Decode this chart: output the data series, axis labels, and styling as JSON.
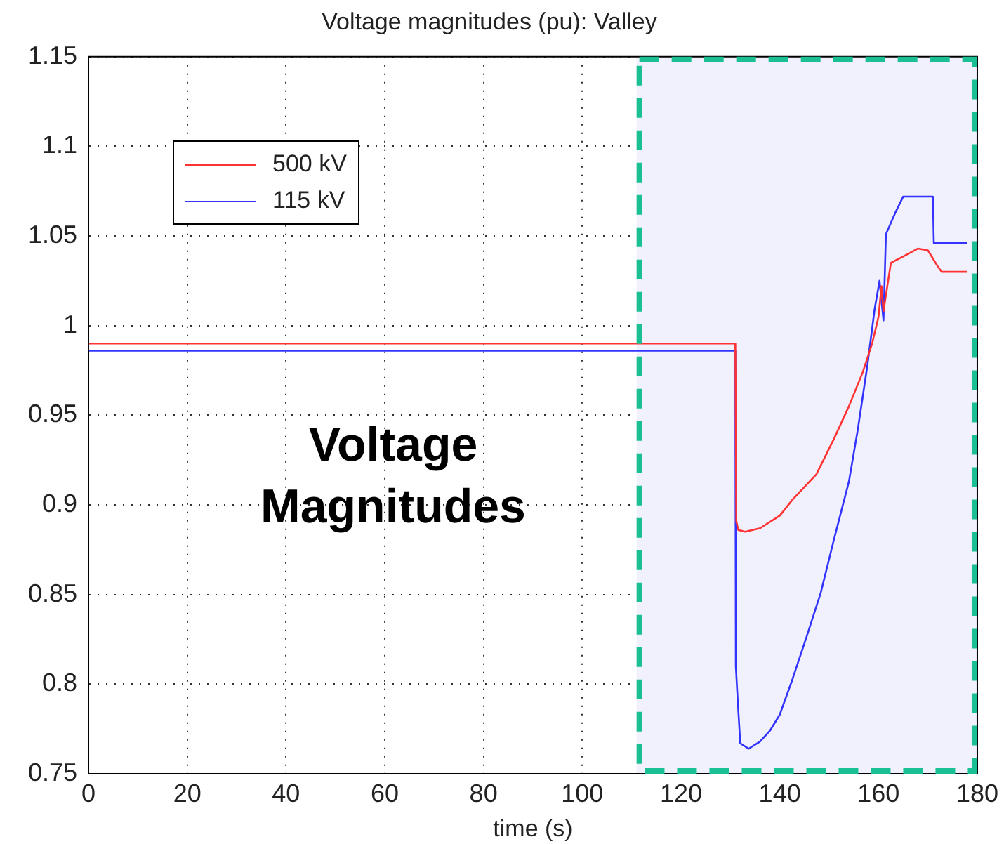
{
  "chart_data": {
    "type": "line",
    "title": "Voltage magnitudes (pu): Valley",
    "xlabel": "time (s)",
    "xlim": [
      0,
      180
    ],
    "xticks": [
      0,
      20,
      40,
      60,
      80,
      100,
      120,
      140,
      160,
      180
    ],
    "ylim": [
      0.75,
      1.15
    ],
    "yticks": [
      0.75,
      0.8,
      0.85,
      0.9,
      0.95,
      1,
      1.05,
      1.1,
      1.15
    ],
    "grid": true,
    "legend": "top left",
    "line_style": "solid",
    "marker": "none",
    "bands": [
      {
        "axis": "x",
        "from": 111,
        "to": 180,
        "color": "#f0f1fc"
      }
    ],
    "annotations": [
      "Voltage Magnitudes"
    ],
    "series": [
      {
        "name": "500 kV",
        "color": "#ff3333",
        "x": [
          0,
          131,
          131.2,
          131.6,
          133,
          136,
          140,
          142.6,
          147.4,
          151,
          154,
          156.8,
          158.7,
          160,
          160.6,
          161,
          162.5,
          165.3,
          168,
          170,
          172,
          172.8,
          178
        ],
        "values": [
          0.99,
          0.99,
          0.891,
          0.886,
          0.885,
          0.887,
          0.894,
          0.903,
          0.917,
          0.937,
          0.955,
          0.974,
          0.99,
          1.005,
          1.022,
          1.008,
          1.035,
          1.039,
          1.043,
          1.042,
          1.033,
          1.03,
          1.03
        ]
      },
      {
        "name": "115 kV",
        "color": "#3333ff",
        "x": [
          0,
          131,
          131.1,
          131.5,
          132,
          133.7,
          136,
          138,
          140,
          142.6,
          145.5,
          148.3,
          151,
          154,
          155.8,
          157.7,
          159.2,
          160.2,
          161,
          161.5,
          163.4,
          165,
          171,
          171.2,
          178
        ],
        "values": [
          0.986,
          0.986,
          0.81,
          0.79,
          0.767,
          0.764,
          0.768,
          0.774,
          0.783,
          0.803,
          0.827,
          0.851,
          0.881,
          0.913,
          0.942,
          0.977,
          1.009,
          1.025,
          1.003,
          1.051,
          1.063,
          1.072,
          1.072,
          1.046,
          1.046
        ]
      }
    ]
  }
}
